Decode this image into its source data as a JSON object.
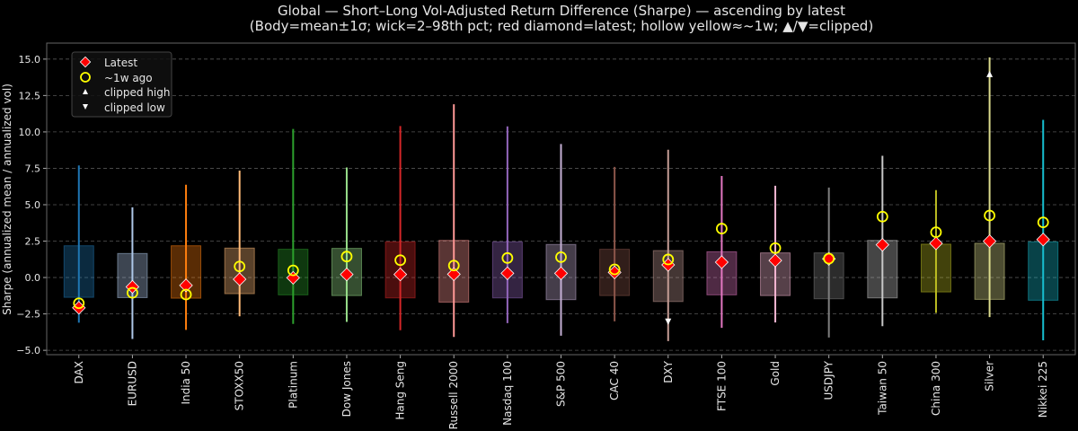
{
  "chart_data": {
    "type": "box-range",
    "title": "Global — Short–Long Vol-Adjusted Return Difference (Sharpe) — ascending by latest",
    "subtitle": "(Body=mean±1σ; wick=2–98th pct; red diamond=latest; hollow yellow≈~1w; ▲/▼=clipped)",
    "xlabel": "",
    "ylabel": "Sharpe (annualized mean / annualized vol)",
    "ylim": [
      -5.3,
      16.1
    ],
    "yticks": [
      "-5.0",
      "-2.5",
      "0.0",
      "2.5",
      "5.0",
      "7.5",
      "10.0",
      "12.5",
      "15.0"
    ],
    "grid": "horizontal dashed",
    "legend_position": "top-left",
    "legend": {
      "latest": "Latest",
      "week_ago": "~1w ago",
      "clipped_high": "clipped high",
      "clipped_low": "clipped low"
    },
    "marker_colors": {
      "latest": "#ff0000",
      "week_ago": "#ffff00",
      "clipped": "#ffffff"
    },
    "categories": [
      "DAX",
      "EURUSD",
      "India 50",
      "STOXX50",
      "Platinum",
      "Dow Jones",
      "Hang Seng",
      "Russell 2000",
      "Nasdaq 100",
      "S&P 500",
      "CAC 40",
      "DXY",
      "FTSE 100",
      "Gold",
      "USDJPY",
      "Taiwan 50",
      "China 300",
      "Silver",
      "Nikkei 225"
    ],
    "colors": [
      "#1f77b4",
      "#aec7e8",
      "#ff7f0e",
      "#ffbb78",
      "#2ca02c",
      "#98df8a",
      "#d62728",
      "#ff9896",
      "#9467bd",
      "#c5b0d5",
      "#8c564b",
      "#c49c94",
      "#e377c2",
      "#f7b6d2",
      "#7f7f7f",
      "#c7c7c7",
      "#bcbd22",
      "#dbdb8d",
      "#17becf"
    ],
    "box_low": [
      -1.36,
      -1.38,
      -1.42,
      -1.11,
      -1.19,
      -1.24,
      -1.4,
      -1.69,
      -1.4,
      -1.52,
      -1.24,
      -1.65,
      -1.19,
      -1.24,
      -1.46,
      -1.4,
      -0.99,
      -1.5,
      -1.56
    ],
    "box_high": [
      2.18,
      1.65,
      2.18,
      2.02,
      1.94,
      2.0,
      2.45,
      2.55,
      2.45,
      2.27,
      1.94,
      1.85,
      1.77,
      1.69,
      1.69,
      2.55,
      2.29,
      2.35,
      2.45
    ],
    "wick_low": [
      -3.1,
      -4.22,
      -3.6,
      -2.66,
      -3.19,
      -3.05,
      -3.62,
      -4.08,
      -3.13,
      -4.0,
      -3.01,
      -4.37,
      -3.46,
      -3.09,
      -4.12,
      -3.34,
      -2.43,
      -2.72,
      -4.31
    ],
    "wick_high": [
      7.7,
      4.82,
      6.37,
      7.34,
      10.2,
      7.56,
      10.4,
      11.9,
      10.38,
      9.17,
      7.6,
      8.78,
      6.97,
      6.3,
      6.18,
      8.36,
      6.0,
      15.12,
      10.83
    ],
    "latest": [
      -2.08,
      -0.64,
      -0.54,
      -0.12,
      -0.02,
      0.21,
      0.21,
      0.23,
      0.29,
      0.29,
      0.35,
      0.87,
      1.05,
      1.17,
      1.28,
      2.25,
      2.35,
      2.49,
      2.61
    ],
    "week_ago": [
      -1.77,
      -1.05,
      -1.17,
      0.76,
      0.49,
      1.44,
      1.19,
      0.82,
      1.34,
      1.4,
      0.56,
      1.24,
      3.36,
      2.02,
      1.3,
      4.18,
      3.11,
      4.26,
      3.79
    ],
    "clipped_high": [
      null,
      null,
      null,
      null,
      null,
      null,
      null,
      null,
      null,
      null,
      null,
      null,
      null,
      null,
      null,
      null,
      null,
      13.95,
      null
    ],
    "clipped_low": [
      null,
      null,
      null,
      null,
      null,
      null,
      null,
      null,
      null,
      null,
      null,
      -3.0,
      null,
      null,
      null,
      null,
      null,
      null,
      null
    ]
  }
}
